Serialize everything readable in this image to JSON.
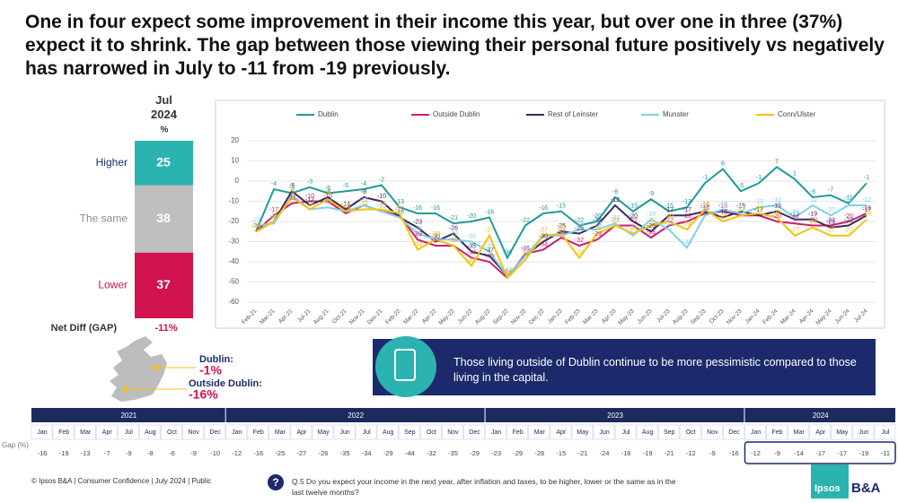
{
  "title": "One in four expect some improvement in their income this year, but over one in three (37%) expect it to shrink. The gap between those viewing their personal future positively vs negatively has narrowed in July to -11 from -19 previously.",
  "chart_data": [
    {
      "type": "stacked_bar",
      "title": "Jul 2024",
      "subtitle": "%",
      "categories": [
        "Higher",
        "The same",
        "Lower"
      ],
      "values": [
        25,
        38,
        37
      ],
      "colors": [
        "#2ab3b1",
        "#bfbfbf",
        "#d1134f"
      ],
      "label_colors": [
        "#1c2a6b",
        "#8c8c8c",
        "#d1134f"
      ],
      "net_label": "Net Diff (GAP)",
      "net_value_label": "-11%"
    },
    {
      "type": "line",
      "grid": true,
      "ylim": [
        -60,
        20
      ],
      "yticks": [
        -60,
        -50,
        -40,
        -30,
        -20,
        -10,
        0,
        10,
        20
      ],
      "categories": [
        "Feb-21",
        "Mar-21",
        "Apr-21",
        "Jul-21",
        "Aug-21",
        "Oct-21",
        "Nov-21",
        "Dec-21",
        "Feb-22",
        "Mar-22",
        "Apr-22",
        "May-22",
        "Jun-22",
        "Aug-22",
        "Sep-22",
        "Nov-22",
        "Dec-22",
        "Jan-23",
        "Feb-23",
        "Mar-23",
        "Apr-23",
        "May-23",
        "Jun-23",
        "Jul-23",
        "Aug-23",
        "Sep-23",
        "Oct-23",
        "Nov-23",
        "Jan-24",
        "Feb-24",
        "Mar-24",
        "Apr-24",
        "May-24",
        "Jun-24",
        "Jul-24"
      ],
      "series": [
        {
          "name": "Dublin",
          "color": "#1f9a9a",
          "values": [
            -25,
            -4,
            -6,
            -3,
            -6,
            -5,
            -4,
            -2,
            -13,
            -16,
            -16,
            -21,
            -20,
            -18,
            -38,
            -22,
            -16,
            -15,
            -22,
            -20,
            -8,
            -15,
            -9,
            -15,
            -13,
            -1,
            6,
            -5,
            -1,
            7,
            1,
            -8,
            -7,
            -11,
            -1
          ]
        },
        {
          "name": "Outside Dublin",
          "color": "#cc1f6e",
          "values": [
            -25,
            -17,
            -11,
            -10,
            -10,
            -16,
            -12,
            -15,
            -17,
            -29,
            -32,
            -32,
            -38,
            -40,
            -48,
            -36,
            -34,
            -28,
            -32,
            -29,
            -22,
            -22,
            -28,
            -22,
            -20,
            -16,
            -15,
            -17,
            -17,
            -20,
            -21,
            -22,
            -22,
            -20,
            -16
          ]
        },
        {
          "name": "Rest of Leinster",
          "color": "#3b2a5e",
          "values": [
            -25,
            -20,
            -5,
            -12,
            -8,
            -14,
            -8,
            -10,
            -18,
            -23,
            -30,
            -26,
            -35,
            -37,
            -47,
            -37,
            -30,
            -25,
            -26,
            -22,
            -12,
            -20,
            -25,
            -17,
            -17,
            -15,
            -18,
            -15,
            -17,
            -15,
            -19,
            -19,
            -23,
            -22,
            -17
          ]
        },
        {
          "name": "Munster",
          "color": "#7fd0ea",
          "values": [
            -22,
            -21,
            -7,
            -14,
            -13,
            -15,
            -12,
            -15,
            -18,
            -26,
            -29,
            -29,
            -30,
            -35,
            -47,
            -37,
            -27,
            -27,
            -24,
            -24,
            -21,
            -27,
            -19,
            -24,
            -33,
            -17,
            -14,
            -16,
            -13,
            -12,
            -18,
            -12,
            -17,
            -12,
            -12
          ]
        },
        {
          "name": "Conn/Ulster",
          "color": "#f4c20d",
          "values": [
            -25,
            -20,
            -8,
            -14,
            -9,
            -15,
            -14,
            -14,
            -16,
            -34,
            -29,
            -32,
            -42,
            -27,
            -48,
            -39,
            -27,
            -26,
            -38,
            -26,
            -22,
            -26,
            -22,
            -20,
            -24,
            -14,
            -20,
            -17,
            -16,
            -18,
            -27,
            -23,
            -27,
            -27,
            -19
          ]
        }
      ]
    }
  ],
  "regions": [
    {
      "label": "Dublin:",
      "value": "-1%"
    },
    {
      "label": "Outside Dublin:",
      "value": "-16%"
    }
  ],
  "callout": "Those living outside of Dublin continue to be more pessimistic compared to those living in the capital.",
  "gap_table": {
    "row_label": "Gap (%)",
    "groups": [
      {
        "year": "2021",
        "months": [
          "Jan",
          "Feb",
          "Mar",
          "Apr",
          "Jul",
          "Aug",
          "Oct",
          "Nov",
          "Dec"
        ],
        "values": [
          "-16",
          "-19",
          "-13",
          "-7",
          "-9",
          "-8",
          "-6",
          "-9",
          "-10"
        ]
      },
      {
        "year": "2022",
        "months": [
          "Jan",
          "Feb",
          "Mar",
          "Apr",
          "May",
          "Jun",
          "Jul",
          "Aug",
          "Sep",
          "Oct",
          "Nov",
          "Dec"
        ],
        "values": [
          "-12",
          "-16",
          "-25",
          "-27",
          "-26",
          "-35",
          "-34",
          "-29",
          "-44",
          "-32",
          "-35",
          "-29"
        ]
      },
      {
        "year": "2023",
        "months": [
          "Jan",
          "Feb",
          "Mar",
          "Apr",
          "May",
          "Jun",
          "Jul",
          "Aug",
          "Sep",
          "Oct",
          "Nov",
          "Dec"
        ],
        "values": [
          "-23",
          "-29",
          "-28",
          "-15",
          "-21",
          "-24",
          "-18",
          "-19",
          "-21",
          "-12",
          "-9",
          "-16"
        ]
      },
      {
        "year": "2024",
        "months": [
          "Jan",
          "Feb",
          "Mar",
          "Apr",
          "May",
          "Jun",
          "Jul"
        ],
        "values": [
          "-12",
          "-9",
          "-14",
          "-17",
          "-17",
          "-19",
          "-11"
        ]
      }
    ]
  },
  "footer": {
    "copyright": "© Ipsos B&A | Consumer Confidence | July 2024 | Public",
    "question": "Q.5 Do you expect your income in the next year, after inflation and taxes, to be higher, lower or the same as in the last twelve months?",
    "logo_ipsos": "Ipsos",
    "logo_ba": "B&A"
  }
}
